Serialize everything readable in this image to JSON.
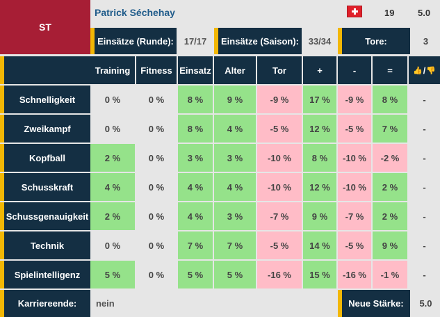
{
  "player": {
    "position": "ST",
    "name": "Patrick Séchehay",
    "age": "19",
    "strength": "5.0",
    "flag_icon": "switzerland-flag-icon"
  },
  "summary": {
    "einsaetze_runde_label": "Einsätze (Runde):",
    "einsaetze_runde_value": "17/17",
    "einsaetze_saison_label": "Einsätze (Saison):",
    "einsaetze_saison_value": "33/34",
    "tore_label": "Tore:",
    "tore_value": "3"
  },
  "table": {
    "headers": [
      "Training",
      "Fitness",
      "Einsatz",
      "Alter",
      "Tor",
      "+",
      "-",
      "="
    ],
    "rating_header_sep": "/",
    "rows": [
      {
        "label": "Schnelligkeit",
        "values": [
          "0 %",
          "0 %",
          "8 %",
          "9 %",
          "-9 %",
          "17 %",
          "-9 %",
          "8 %"
        ],
        "rating": "-"
      },
      {
        "label": "Zweikampf",
        "values": [
          "0 %",
          "0 %",
          "8 %",
          "4 %",
          "-5 %",
          "12 %",
          "-5 %",
          "7 %"
        ],
        "rating": "-"
      },
      {
        "label": "Kopfball",
        "values": [
          "2 %",
          "0 %",
          "3 %",
          "3 %",
          "-10 %",
          "8 %",
          "-10 %",
          "-2 %"
        ],
        "rating": "-"
      },
      {
        "label": "Schusskraft",
        "values": [
          "4 %",
          "0 %",
          "4 %",
          "4 %",
          "-10 %",
          "12 %",
          "-10 %",
          "2 %"
        ],
        "rating": "-"
      },
      {
        "label": "Schussgenauigkeit",
        "values": [
          "2 %",
          "0 %",
          "4 %",
          "3 %",
          "-7 %",
          "9 %",
          "-7 %",
          "2 %"
        ],
        "rating": "-"
      },
      {
        "label": "Technik",
        "values": [
          "0 %",
          "0 %",
          "7 %",
          "7 %",
          "-5 %",
          "14 %",
          "-5 %",
          "9 %"
        ],
        "rating": "-"
      },
      {
        "label": "Spielintelligenz",
        "values": [
          "5 %",
          "0 %",
          "5 %",
          "5 %",
          "-16 %",
          "15 %",
          "-16 %",
          "-1 %"
        ],
        "rating": "-"
      }
    ]
  },
  "footer": {
    "karriereende_label": "Karriereende:",
    "karriereende_value": "nein",
    "neue_staerke_label": "Neue Stärke:",
    "neue_staerke_value": "5.0"
  },
  "colors": {
    "gray": "#e6e6e6",
    "green": "#95e28a",
    "pink": "#ffbcc7",
    "dark": "#142f43",
    "accent": "#f2b705",
    "position": "#a71e35"
  }
}
